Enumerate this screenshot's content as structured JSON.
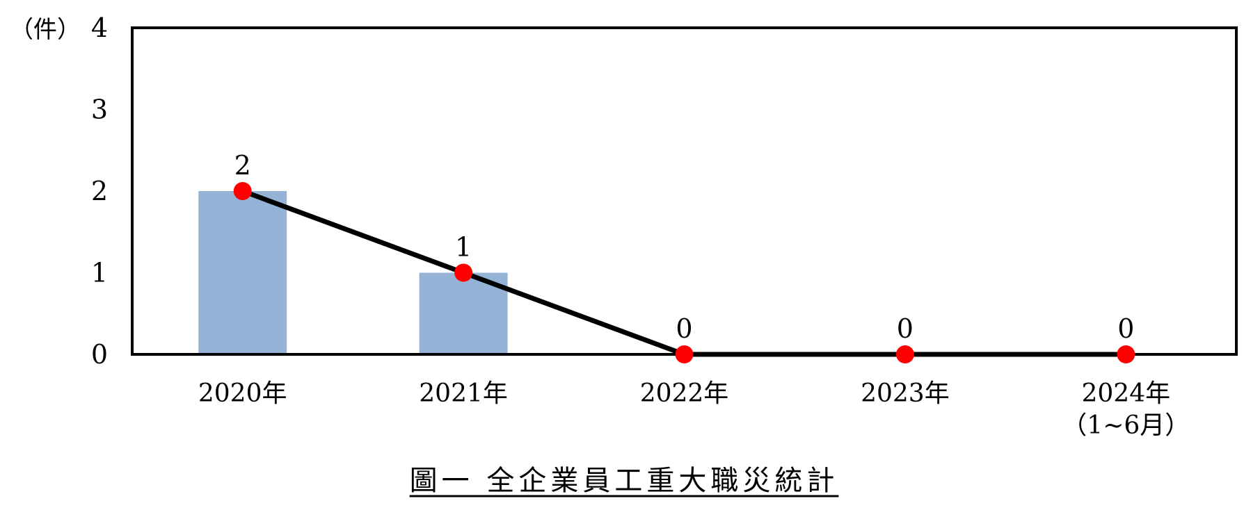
{
  "chart_data": {
    "type": "bar",
    "categories": [
      "2020年",
      "2021年",
      "2022年",
      "2023年",
      "2024年\n（1~6月）"
    ],
    "values": [
      2,
      1,
      0,
      0,
      0
    ],
    "line_values": [
      2,
      1,
      0,
      0,
      0
    ],
    "data_labels": [
      "2",
      "1",
      "0",
      "0",
      "0"
    ],
    "ylabel": "（件）",
    "ylim": [
      0,
      4
    ],
    "yticks": [
      "0",
      "1",
      "2",
      "3",
      "4"
    ],
    "caption": "圖一 全企業員工重大職災統計",
    "grid": false,
    "legend": "none",
    "colors": {
      "bar": "#95B3D7",
      "line": "#000000",
      "marker": "#FF0000",
      "frame": "#000000"
    }
  }
}
